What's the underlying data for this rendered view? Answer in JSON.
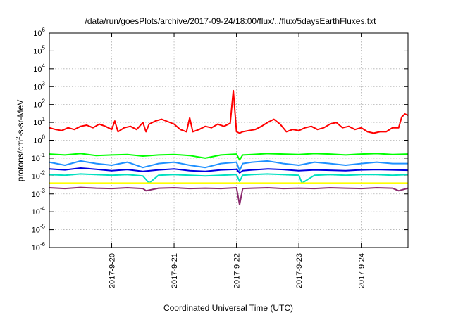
{
  "chart_data": {
    "type": "line",
    "title": "/data/run/goesPlots/archive/2017-09-24/18:00/flux/../flux/5daysEarthFluxes.txt",
    "xlabel": "Coordinated Universal Time (UTC)",
    "ylabel": "protons/cm²-s-sr-MeV",
    "ylabel_parts": [
      "protons/cm",
      "2",
      "-s-sr-MeV"
    ],
    "yscale": "log",
    "ylim": [
      1e-06,
      1000000.0
    ],
    "ytick_exponents": [
      "-6",
      "-5",
      "-4",
      "-3",
      "-2",
      "-1",
      "0",
      "1",
      "2",
      "3",
      "4",
      "5",
      "6"
    ],
    "xlim": [
      0,
      5.75
    ],
    "xticks": [
      {
        "x": 1,
        "label": "2017-9-20"
      },
      {
        "x": 2,
        "label": "2017-9-21"
      },
      {
        "x": 3,
        "label": "2017-9-22"
      },
      {
        "x": 4,
        "label": "2017-9-23"
      },
      {
        "x": 5,
        "label": "2017-9-24"
      }
    ],
    "grid": true,
    "series": [
      {
        "color": "#ff0000",
        "x": [
          0,
          0.1,
          0.2,
          0.3,
          0.4,
          0.5,
          0.6,
          0.7,
          0.8,
          0.9,
          1.0,
          1.05,
          1.1,
          1.2,
          1.3,
          1.4,
          1.5,
          1.55,
          1.6,
          1.7,
          1.8,
          1.9,
          2.0,
          2.1,
          2.2,
          2.25,
          2.3,
          2.4,
          2.5,
          2.6,
          2.7,
          2.8,
          2.9,
          2.95,
          3.0,
          3.05,
          3.1,
          3.2,
          3.3,
          3.4,
          3.5,
          3.6,
          3.7,
          3.8,
          3.9,
          4.0,
          4.1,
          4.2,
          4.3,
          4.4,
          4.5,
          4.6,
          4.7,
          4.8,
          4.9,
          5.0,
          5.1,
          5.2,
          5.3,
          5.4,
          5.5,
          5.6,
          5.65,
          5.7,
          5.75
        ],
        "y": [
          5,
          4,
          3.5,
          5,
          4,
          6,
          7,
          5,
          8,
          6,
          4,
          12,
          3,
          5,
          6,
          4,
          10,
          3,
          8,
          12,
          15,
          11,
          8,
          4,
          3,
          18,
          3,
          4,
          6,
          5,
          8,
          6,
          9,
          600,
          3,
          2.5,
          3,
          3.5,
          4,
          6,
          10,
          15,
          8,
          3,
          4,
          3.5,
          5,
          6,
          4,
          5,
          8,
          10,
          5,
          6,
          4,
          5,
          3,
          2.5,
          3,
          3,
          5,
          5,
          20,
          30,
          25
        ]
      },
      {
        "color": "#00ff00",
        "x": [
          0,
          0.25,
          0.5,
          0.75,
          1.0,
          1.25,
          1.5,
          1.75,
          2.0,
          2.25,
          2.5,
          2.75,
          3.0,
          3.05,
          3.1,
          3.25,
          3.5,
          3.75,
          4.0,
          4.25,
          4.5,
          4.75,
          5.0,
          5.25,
          5.5,
          5.75
        ],
        "y": [
          0.17,
          0.15,
          0.18,
          0.14,
          0.15,
          0.16,
          0.13,
          0.15,
          0.16,
          0.14,
          0.1,
          0.15,
          0.17,
          0.08,
          0.15,
          0.16,
          0.18,
          0.17,
          0.16,
          0.18,
          0.17,
          0.15,
          0.17,
          0.18,
          0.16,
          0.17
        ]
      },
      {
        "color": "#1e90ff",
        "x": [
          0,
          0.25,
          0.5,
          0.75,
          1.0,
          1.25,
          1.5,
          1.75,
          2.0,
          2.25,
          2.5,
          2.75,
          3.0,
          3.05,
          3.1,
          3.25,
          3.5,
          3.75,
          4.0,
          4.25,
          4.5,
          4.75,
          5.0,
          5.25,
          5.5,
          5.75
        ],
        "y": [
          0.06,
          0.04,
          0.07,
          0.05,
          0.04,
          0.06,
          0.03,
          0.05,
          0.06,
          0.04,
          0.03,
          0.05,
          0.06,
          0.02,
          0.05,
          0.06,
          0.07,
          0.05,
          0.04,
          0.06,
          0.05,
          0.04,
          0.05,
          0.06,
          0.05,
          0.05
        ]
      },
      {
        "color": "#0000e0",
        "x": [
          0,
          0.25,
          0.5,
          0.75,
          1.0,
          1.25,
          1.5,
          1.75,
          2.0,
          2.25,
          2.5,
          2.75,
          3.0,
          3.05,
          3.1,
          3.25,
          3.5,
          3.75,
          4.0,
          4.25,
          4.5,
          4.75,
          5.0,
          5.25,
          5.5,
          5.75
        ],
        "y": [
          0.025,
          0.022,
          0.028,
          0.024,
          0.02,
          0.023,
          0.018,
          0.022,
          0.025,
          0.02,
          0.018,
          0.022,
          0.024,
          0.015,
          0.02,
          0.022,
          0.025,
          0.023,
          0.02,
          0.022,
          0.021,
          0.02,
          0.022,
          0.023,
          0.022,
          0.021
        ]
      },
      {
        "color": "#00e0c0",
        "x": [
          0,
          0.25,
          0.5,
          0.75,
          1.0,
          1.25,
          1.5,
          1.6,
          1.75,
          2.0,
          2.25,
          2.5,
          2.75,
          3.0,
          3.05,
          3.1,
          3.25,
          3.5,
          3.75,
          4.0,
          4.05,
          4.25,
          4.5,
          4.75,
          5.0,
          5.25,
          5.5,
          5.75
        ],
        "y": [
          0.012,
          0.011,
          0.013,
          0.012,
          0.011,
          0.012,
          0.01,
          0.004,
          0.011,
          0.012,
          0.011,
          0.01,
          0.011,
          0.012,
          0.005,
          0.011,
          0.012,
          0.013,
          0.012,
          0.011,
          0.004,
          0.011,
          0.012,
          0.011,
          0.012,
          0.012,
          0.011,
          0.012
        ]
      },
      {
        "color": "#ffff00",
        "x": [
          0,
          0.5,
          1.0,
          1.5,
          2.0,
          2.5,
          3.0,
          3.5,
          4.0,
          4.5,
          5.0,
          5.5,
          5.75
        ],
        "y": [
          0.004,
          0.004,
          0.004,
          0.004,
          0.004,
          0.004,
          0.004,
          0.004,
          0.004,
          0.004,
          0.004,
          0.004,
          0.004
        ]
      },
      {
        "color": "#8b2a6e",
        "x": [
          0,
          0.25,
          0.5,
          0.75,
          1.0,
          1.25,
          1.5,
          1.55,
          1.75,
          2.0,
          2.25,
          2.5,
          2.75,
          3.0,
          3.05,
          3.1,
          3.25,
          3.5,
          3.75,
          4.0,
          4.25,
          4.5,
          4.75,
          5.0,
          5.25,
          5.5,
          5.6,
          5.75
        ],
        "y": [
          0.0022,
          0.002,
          0.0023,
          0.0021,
          0.002,
          0.0022,
          0.002,
          0.0015,
          0.0021,
          0.0022,
          0.002,
          0.0021,
          0.002,
          0.0022,
          0.00025,
          0.002,
          0.0021,
          0.0022,
          0.002,
          0.0021,
          0.002,
          0.0022,
          0.0021,
          0.002,
          0.0022,
          0.0021,
          0.0015,
          0.0021
        ]
      }
    ]
  }
}
